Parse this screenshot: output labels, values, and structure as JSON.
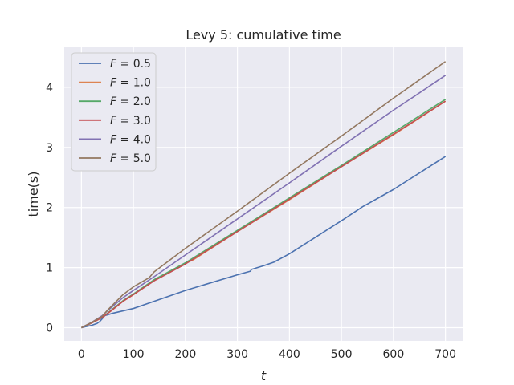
{
  "chart_data": {
    "type": "line",
    "title": "Levy 5: cumulative time",
    "xlabel": "t",
    "ylabel": "time(s)",
    "xlim": [
      -33,
      733
    ],
    "ylim": [
      -0.22,
      4.68
    ],
    "xticks": [
      0,
      100,
      200,
      300,
      400,
      500,
      600,
      700
    ],
    "yticks": [
      0,
      1,
      2,
      3,
      4
    ],
    "grid": true,
    "legend_position": "upper-left",
    "series": [
      {
        "name": "F = 0.5",
        "legend_var": "F",
        "legend_eq": " = 0.5",
        "color": "#4c72b0",
        "points": [
          [
            0,
            0
          ],
          [
            10,
            0.02
          ],
          [
            20,
            0.04
          ],
          [
            30,
            0.07
          ],
          [
            35,
            0.1
          ],
          [
            40,
            0.15
          ],
          [
            45,
            0.2
          ],
          [
            60,
            0.24
          ],
          [
            100,
            0.32
          ],
          [
            200,
            0.62
          ],
          [
            300,
            0.88
          ],
          [
            325,
            0.94
          ],
          [
            327,
            0.97
          ],
          [
            350,
            1.03
          ],
          [
            370,
            1.09
          ],
          [
            400,
            1.23
          ],
          [
            500,
            1.78
          ],
          [
            535,
            1.98
          ],
          [
            540,
            2.01
          ],
          [
            600,
            2.3
          ],
          [
            700,
            2.85
          ]
        ]
      },
      {
        "name": "F = 1.0",
        "legend_var": "F",
        "legend_eq": " = 1.0",
        "color": "#dd8452",
        "points": [
          [
            0,
            0
          ],
          [
            20,
            0.08
          ],
          [
            40,
            0.17
          ],
          [
            60,
            0.3
          ],
          [
            80,
            0.44
          ],
          [
            100,
            0.55
          ],
          [
            140,
            0.79
          ],
          [
            200,
            1.07
          ],
          [
            215,
            1.13
          ],
          [
            300,
            1.6
          ],
          [
            400,
            2.13
          ],
          [
            500,
            2.68
          ],
          [
            600,
            3.21
          ],
          [
            700,
            3.77
          ]
        ]
      },
      {
        "name": "F = 2.0",
        "legend_var": "F",
        "legend_eq": " = 2.0",
        "color": "#55a868",
        "points": [
          [
            0,
            0
          ],
          [
            20,
            0.08
          ],
          [
            40,
            0.17
          ],
          [
            60,
            0.31
          ],
          [
            80,
            0.45
          ],
          [
            100,
            0.56
          ],
          [
            140,
            0.8
          ],
          [
            200,
            1.08
          ],
          [
            300,
            1.62
          ],
          [
            400,
            2.16
          ],
          [
            500,
            2.7
          ],
          [
            600,
            3.25
          ],
          [
            700,
            3.8
          ]
        ]
      },
      {
        "name": "F = 3.0",
        "legend_var": "F",
        "legend_eq": " = 3.0",
        "color": "#c44e52",
        "points": [
          [
            0,
            0
          ],
          [
            20,
            0.08
          ],
          [
            40,
            0.17
          ],
          [
            60,
            0.3
          ],
          [
            80,
            0.44
          ],
          [
            100,
            0.55
          ],
          [
            140,
            0.78
          ],
          [
            200,
            1.06
          ],
          [
            300,
            1.6
          ],
          [
            400,
            2.14
          ],
          [
            500,
            2.68
          ],
          [
            600,
            3.22
          ],
          [
            700,
            3.77
          ]
        ]
      },
      {
        "name": "F = 4.0",
        "legend_var": "F",
        "legend_eq": " = 4.0",
        "color": "#8172b3",
        "points": [
          [
            0,
            0
          ],
          [
            20,
            0.09
          ],
          [
            40,
            0.2
          ],
          [
            50,
            0.28
          ],
          [
            80,
            0.5
          ],
          [
            100,
            0.62
          ],
          [
            140,
            0.85
          ],
          [
            200,
            1.21
          ],
          [
            300,
            1.81
          ],
          [
            400,
            2.41
          ],
          [
            500,
            3.02
          ],
          [
            600,
            3.62
          ],
          [
            640,
            3.85
          ],
          [
            700,
            4.2
          ]
        ]
      },
      {
        "name": "F = 5.0",
        "legend_var": "F",
        "legend_eq": " = 5.0",
        "color": "#937860",
        "points": [
          [
            0,
            0
          ],
          [
            20,
            0.09
          ],
          [
            40,
            0.19
          ],
          [
            50,
            0.29
          ],
          [
            80,
            0.55
          ],
          [
            100,
            0.68
          ],
          [
            130,
            0.83
          ],
          [
            140,
            0.93
          ],
          [
            200,
            1.32
          ],
          [
            300,
            1.94
          ],
          [
            400,
            2.57
          ],
          [
            500,
            3.19
          ],
          [
            600,
            3.82
          ],
          [
            700,
            4.43
          ]
        ]
      }
    ]
  }
}
